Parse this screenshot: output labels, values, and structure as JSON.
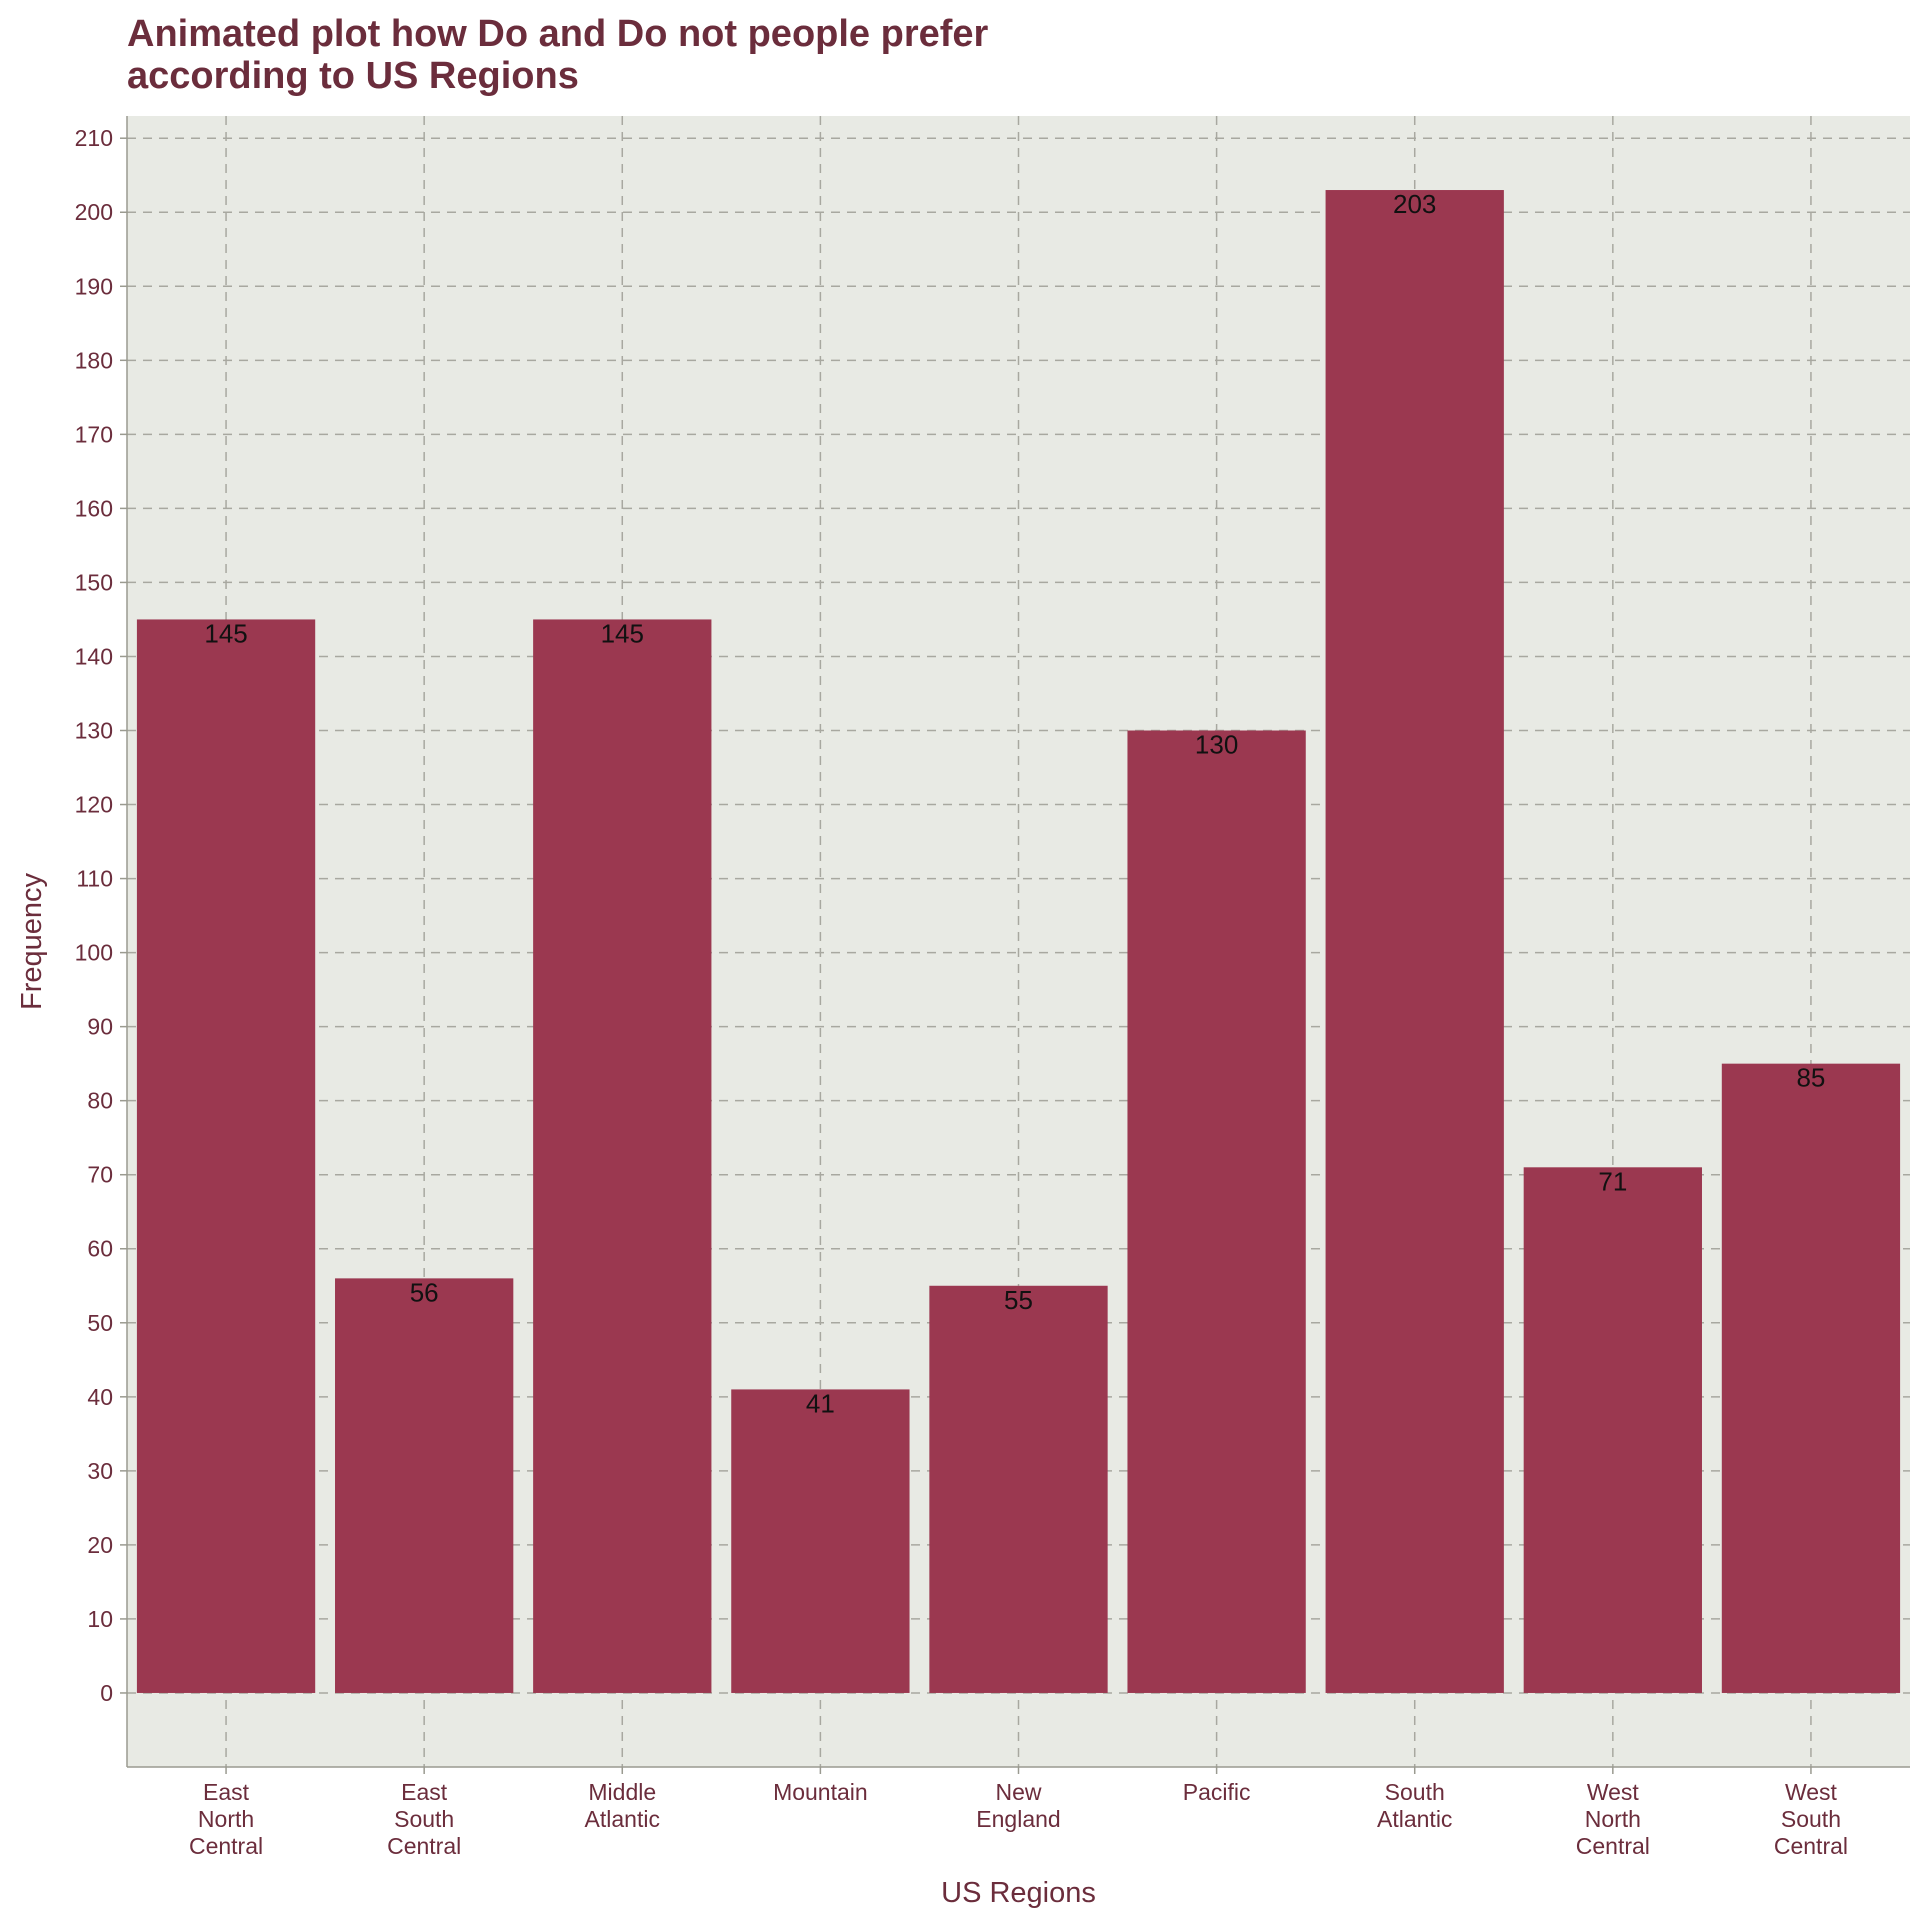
{
  "chart_data": {
    "type": "bar",
    "title": "Animated plot how Do and Do not people prefer according to US Regions",
    "title_lines": [
      "Animated plot how Do and Do not people prefer",
      "according to US Regions"
    ],
    "xlabel": "US Regions",
    "ylabel": "Frequency",
    "categories": [
      "East North Central",
      "East South Central",
      "Middle Atlantic",
      "Mountain",
      "New England",
      "Pacific",
      "South Atlantic",
      "West North Central",
      "West South Central"
    ],
    "category_lines": [
      [
        "East",
        "North",
        "Central"
      ],
      [
        "East",
        "South",
        "Central"
      ],
      [
        "Middle",
        "Atlantic"
      ],
      [
        "Mountain"
      ],
      [
        "New",
        "England"
      ],
      [
        "Pacific"
      ],
      [
        "South",
        "Atlantic"
      ],
      [
        "West",
        "North",
        "Central"
      ],
      [
        "West",
        "South",
        "Central"
      ]
    ],
    "values": [
      145,
      56,
      145,
      41,
      55,
      130,
      203,
      71,
      85
    ],
    "ylim": [
      -10,
      213
    ],
    "yticks": [
      0,
      10,
      20,
      30,
      40,
      50,
      60,
      70,
      80,
      90,
      100,
      110,
      120,
      130,
      140,
      150,
      160,
      170,
      180,
      190,
      200,
      210
    ],
    "grid": true,
    "legend": "none",
    "colors": {
      "bar": "#9b3850",
      "panel_background": "#e8eae4",
      "grid": "#a8a8a0",
      "text": "#6b2d3c",
      "data_label": "#111111"
    }
  }
}
